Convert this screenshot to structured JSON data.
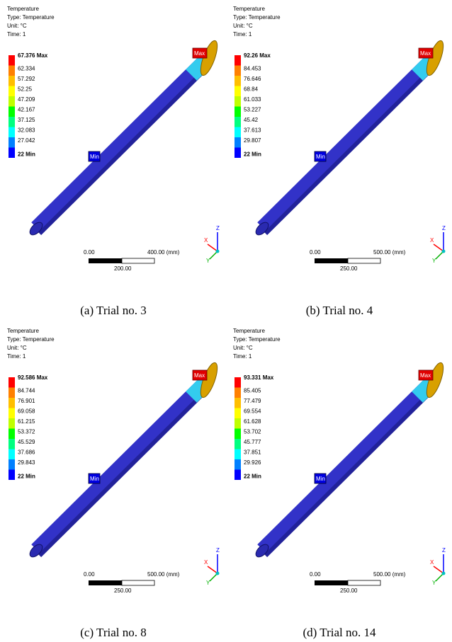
{
  "panels": [
    {
      "header": [
        "Temperature",
        "Type: Temperature",
        "Unit: °C",
        "Time: 1"
      ],
      "legend": [
        "67.376 Max",
        "62.334",
        "57.292",
        "52.25",
        "47.209",
        "42.167",
        "37.125",
        "32.083",
        "27.042",
        "22 Min"
      ],
      "markers": {
        "max": "Max",
        "min": "Min"
      },
      "scale": {
        "start": "0.00",
        "end": "400.00 (mm)",
        "mid": "200.00"
      },
      "axes": [
        "Z",
        "X",
        "Y"
      ],
      "caption": "(a)  Trial  no.  3"
    },
    {
      "header": [
        "Temperature",
        "Type: Temperature",
        "Unit: °C",
        "Time: 1"
      ],
      "legend": [
        "92.26 Max",
        "84.453",
        "76.646",
        "68.84",
        "61.033",
        "53.227",
        "45.42",
        "37.613",
        "29.807",
        "22 Min"
      ],
      "markers": {
        "max": "Max",
        "min": "Min"
      },
      "scale": {
        "start": "0.00",
        "end": "500.00 (mm)",
        "mid": "250.00"
      },
      "axes": [
        "Z",
        "X",
        "Y"
      ],
      "caption": "(b)  Trial  no.  4"
    },
    {
      "header": [
        "Temperature",
        "Type: Temperature",
        "Unit: °C",
        "Time: 1"
      ],
      "legend": [
        "92.586 Max",
        "84.744",
        "76.901",
        "69.058",
        "61.215",
        "53.372",
        "45.529",
        "37.686",
        "29.843",
        "22 Min"
      ],
      "markers": {
        "max": "Max",
        "min": "Min"
      },
      "scale": {
        "start": "0.00",
        "end": "500.00 (mm)",
        "mid": "250.00"
      },
      "axes": [
        "Z",
        "X",
        "Y"
      ],
      "caption": "(c)  Trial  no.  8"
    },
    {
      "header": [
        "Temperature",
        "Type: Temperature",
        "Unit: °C",
        "Time: 1"
      ],
      "legend": [
        "93.331 Max",
        "85.405",
        "77.479",
        "69.554",
        "61.628",
        "53.702",
        "45.777",
        "37.851",
        "29.926",
        "22 Min"
      ],
      "markers": {
        "max": "Max",
        "min": "Min"
      },
      "scale": {
        "start": "0.00",
        "end": "500.00 (mm)",
        "mid": "250.00"
      },
      "axes": [
        "Z",
        "X",
        "Y"
      ],
      "caption": "(d)  Trial  no.  14"
    }
  ]
}
